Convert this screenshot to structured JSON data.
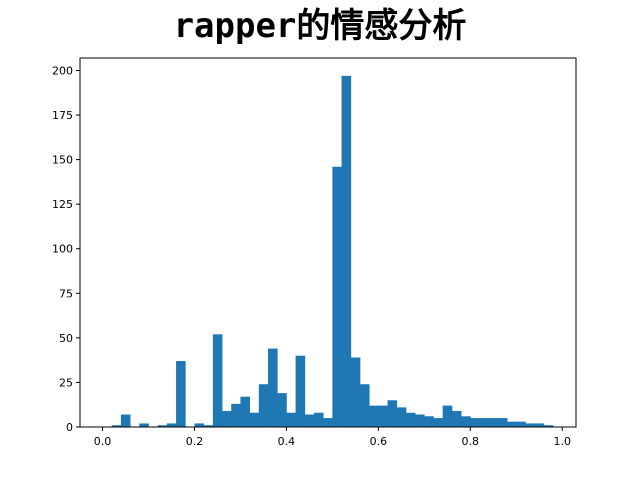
{
  "chart_data": {
    "type": "bar",
    "title": "rapper的情感分析",
    "xlabel": "",
    "ylabel": "",
    "xlim": [
      -0.049,
      1.03
    ],
    "ylim": [
      0,
      207
    ],
    "xticks": [
      0.0,
      0.2,
      0.4,
      0.6,
      0.8,
      1.0
    ],
    "xtick_labels": [
      "0.0",
      "0.2",
      "0.4",
      "0.6",
      "0.8",
      "1.0"
    ],
    "yticks": [
      0,
      25,
      50,
      75,
      100,
      125,
      150,
      175,
      200
    ],
    "ytick_labels": [
      "0",
      "25",
      "50",
      "75",
      "100",
      "125",
      "150",
      "175",
      "200"
    ],
    "bar_color": "#1f77b4",
    "bin_width": 0.02,
    "bin_starts": [
      0.0,
      0.02,
      0.04,
      0.06,
      0.08,
      0.1,
      0.12,
      0.14,
      0.16,
      0.18,
      0.2,
      0.22,
      0.24,
      0.26,
      0.28,
      0.3,
      0.32,
      0.34,
      0.36,
      0.38,
      0.4,
      0.42,
      0.44,
      0.46,
      0.48,
      0.5,
      0.52,
      0.54,
      0.56,
      0.58,
      0.6,
      0.62,
      0.64,
      0.66,
      0.68,
      0.7,
      0.72,
      0.74,
      0.76,
      0.78,
      0.8,
      0.82,
      0.84,
      0.86,
      0.88,
      0.9,
      0.92,
      0.94,
      0.96
    ],
    "values": [
      0,
      1,
      7,
      0,
      2,
      0,
      1,
      2,
      37,
      0,
      2,
      1,
      52,
      9,
      13,
      17,
      8,
      24,
      44,
      19,
      8,
      40,
      7,
      8,
      5,
      146,
      197,
      39,
      24,
      12,
      12,
      15,
      11,
      8,
      7,
      6,
      5,
      12,
      9,
      6,
      5,
      5,
      5,
      5,
      3,
      3,
      2,
      2,
      1
    ]
  }
}
